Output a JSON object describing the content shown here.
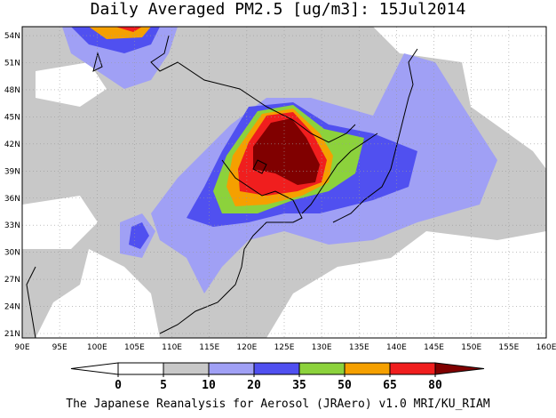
{
  "title": "Daily Averaged PM2.5 [ug/m3]: 15Jul2014",
  "lon_labels": [
    "90E",
    "95E",
    "100E",
    "105E",
    "110E",
    "115E",
    "120E",
    "125E",
    "130E",
    "135E",
    "140E",
    "145E",
    "150E",
    "155E",
    "160E"
  ],
  "lat_labels": [
    "21N",
    "24N",
    "27N",
    "30N",
    "33N",
    "36N",
    "39N",
    "42N",
    "45N",
    "48N",
    "51N",
    "54N"
  ],
  "colorbar": {
    "levels": [
      0,
      5,
      10,
      20,
      35,
      50,
      65,
      80
    ],
    "colors": [
      "#ffffff",
      "#ffffff",
      "#c8c8c8",
      "#a0a0f5",
      "#5050f0",
      "#8cd23c",
      "#f5a000",
      "#f01e1e",
      "#800000"
    ]
  },
  "footer": "The Japanese Reanalysis for Aerosol (JRAero) v1.0 MRI/KU_RIAM"
}
